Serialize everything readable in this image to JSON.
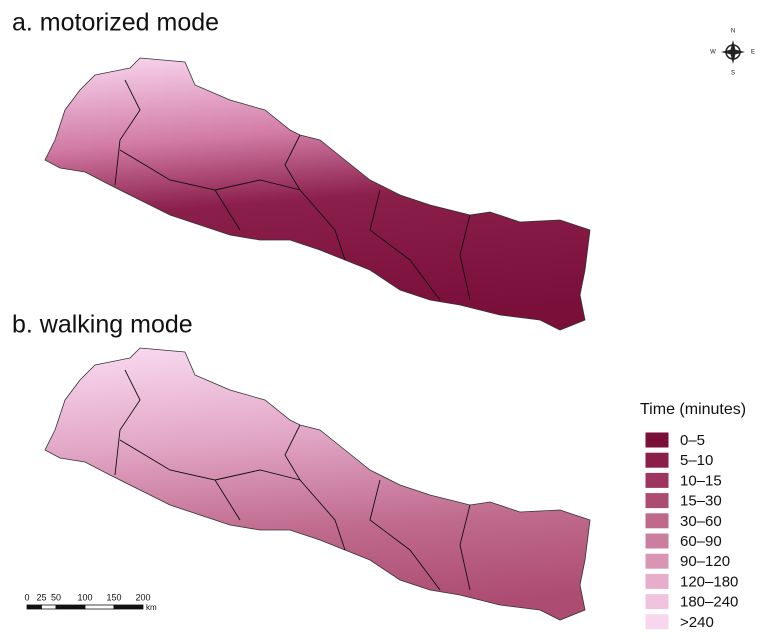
{
  "maps": [
    {
      "title": "a. motorized mode"
    },
    {
      "title": "b. walking mode"
    }
  ],
  "compass": {
    "n": "N",
    "w": "W",
    "e": "E",
    "s": "S"
  },
  "legend": {
    "title": "Time (minutes)",
    "items": [
      {
        "label": "0–5",
        "color": "#7a0f3a"
      },
      {
        "label": "5–10",
        "color": "#8a1f4a"
      },
      {
        "label": "10–15",
        "color": "#9e3560"
      },
      {
        "label": "15–30",
        "color": "#ad4c72"
      },
      {
        "label": "30–60",
        "color": "#bf6a8c"
      },
      {
        "label": "60–90",
        "color": "#cb7fa0"
      },
      {
        "label": "90–120",
        "color": "#d896b4"
      },
      {
        "label": "120–180",
        "color": "#e6aecb"
      },
      {
        "label": "180–240",
        "color": "#f0c4de"
      },
      {
        "label": ">240",
        "color": "#f8d7ee"
      }
    ]
  },
  "scale_bar": {
    "ticks": [
      0,
      25,
      50,
      100,
      150,
      200
    ],
    "unit": "km"
  }
}
